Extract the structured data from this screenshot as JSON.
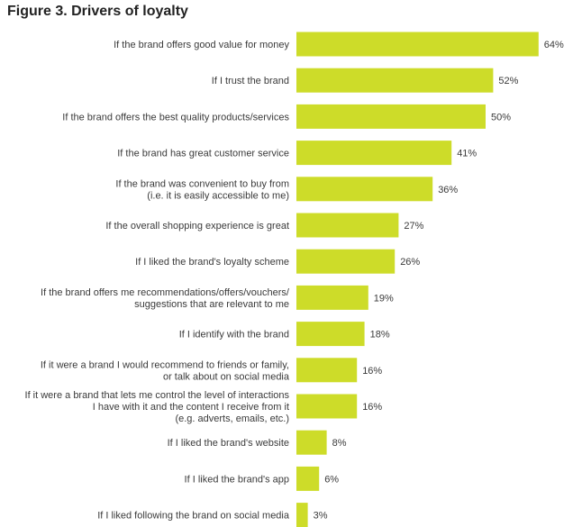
{
  "chart_data": {
    "type": "bar",
    "orientation": "horizontal",
    "title": "Figure 3. Drivers of loyalty",
    "xlabel": "",
    "ylabel": "",
    "xlim": [
      0,
      70
    ],
    "grid": false,
    "value_suffix": "%",
    "bar_color": "#cddc29",
    "categories": [
      [
        "If the brand offers good value for money"
      ],
      [
        "If I trust the brand"
      ],
      [
        "If the brand offers the best quality products/services"
      ],
      [
        "If the brand has great customer service"
      ],
      [
        "If the brand was convenient to buy from",
        "(i.e. it is easily accessible to me)"
      ],
      [
        "If the overall shopping experience is great"
      ],
      [
        "If I liked the brand's loyalty scheme"
      ],
      [
        "If the brand offers me recommendations/offers/vouchers/",
        "suggestions that are relevant to me"
      ],
      [
        "If I identify with the brand"
      ],
      [
        "If it were a brand I would recommend to friends or family,",
        "or talk about on social media"
      ],
      [
        "If it were a brand that lets me control the level of interactions",
        "I have with it and the content I receive from it",
        "(e.g. adverts, emails, etc.)"
      ],
      [
        "If I liked the brand's website"
      ],
      [
        "If I liked the brand's app"
      ],
      [
        "If I liked following the brand on social media"
      ]
    ],
    "values": [
      64,
      52,
      50,
      41,
      36,
      27,
      26,
      19,
      18,
      16,
      16,
      8,
      6,
      3
    ]
  }
}
